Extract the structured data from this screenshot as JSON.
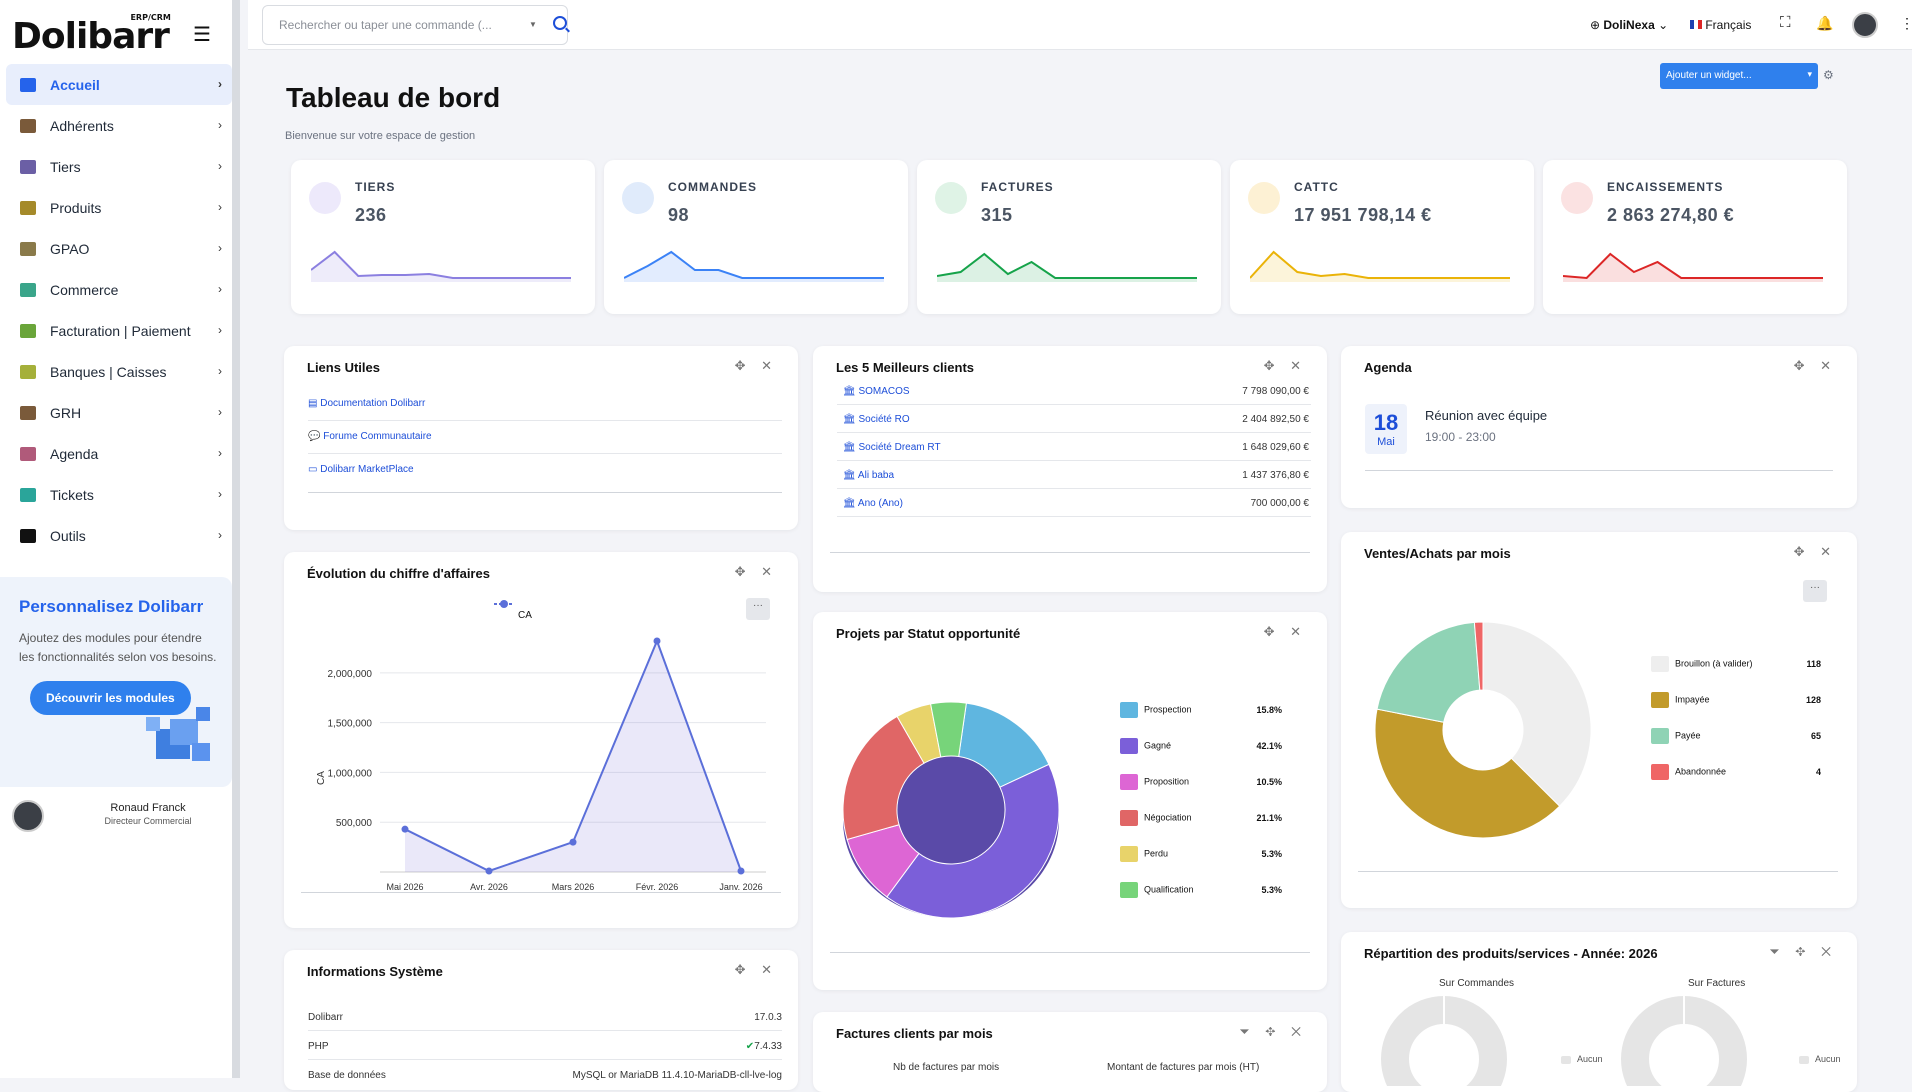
{
  "app": {
    "logo": "Dolibarr",
    "logo_tag": "ERP/CRM"
  },
  "sidebar": {
    "items": [
      {
        "label": "Accueil",
        "color": "#2563eb"
      },
      {
        "label": "Adhérents",
        "color": "#7a5a3a"
      },
      {
        "label": "Tiers",
        "color": "#6b5fa5"
      },
      {
        "label": "Produits",
        "color": "#a58a2a"
      },
      {
        "label": "GPAO",
        "color": "#8a7a4a"
      },
      {
        "label": "Commerce",
        "color": "#3aa58a"
      },
      {
        "label": "Facturation | Paiement",
        "color": "#6aa53a"
      },
      {
        "label": "Banques | Caisses",
        "color": "#a5b03a"
      },
      {
        "label": "GRH",
        "color": "#7a5a3a"
      },
      {
        "label": "Agenda",
        "color": "#b05a7a"
      },
      {
        "label": "Tickets",
        "color": "#2aa59a"
      },
      {
        "label": "Outils",
        "color": "#111111"
      }
    ],
    "promo": {
      "title": "Personnalisez Dolibarr",
      "text": "Ajoutez des modules pour étendre les fonctionnalités selon vos besoins.",
      "button": "Découvrir les modules"
    },
    "user": {
      "name": "Ronaud Franck",
      "role": "Directeur Commercial"
    }
  },
  "topbar": {
    "search_placeholder": "Rechercher ou taper une commande (...",
    "company": "DoliNexa",
    "language": "Français"
  },
  "page": {
    "title": "Tableau de bord",
    "subtitle": "Bienvenue sur votre espace de gestion",
    "add_widget": "Ajouter un widget..."
  },
  "kpis": [
    {
      "label": "TIERS",
      "value": "236",
      "color": "#8b7fe0",
      "bg": "#ede9fb",
      "spark": [
        10,
        28,
        4,
        5,
        5,
        6,
        2,
        2,
        2,
        2,
        2,
        2
      ]
    },
    {
      "label": "COMMANDES",
      "value": "98",
      "color": "#3b82f6",
      "bg": "#e0ebfb",
      "spark": [
        2,
        14,
        28,
        10,
        10,
        2,
        2,
        2,
        2,
        2,
        2,
        2
      ]
    },
    {
      "label": "FACTURES",
      "value": "315",
      "color": "#16a34a",
      "bg": "#dff3e6",
      "spark": [
        4,
        8,
        26,
        6,
        18,
        2,
        2,
        2,
        2,
        2,
        2,
        2
      ]
    },
    {
      "label": "CATTC",
      "value": "17 951 798,14 €",
      "color": "#eab308",
      "bg": "#fdf1d4",
      "spark": [
        2,
        28,
        8,
        4,
        6,
        2,
        2,
        2,
        2,
        2,
        2,
        2
      ]
    },
    {
      "label": "ENCAISSEMENTS",
      "value": "2 863 274,80 €",
      "color": "#dc2626",
      "bg": "#fbe2e2",
      "spark": [
        4,
        2,
        26,
        8,
        18,
        2,
        2,
        2,
        2,
        2,
        2,
        2
      ]
    }
  ],
  "liens": {
    "title": "Liens Utiles",
    "items": [
      "Documentation Dolibarr",
      "Forume Communautaire",
      "Dolibarr MarketPlace"
    ]
  },
  "clients": {
    "title": "Les 5 Meilleurs clients",
    "rows": [
      {
        "name": "SOMACOS",
        "amount": "7 798 090,00 €"
      },
      {
        "name": "Société RO",
        "amount": "2 404 892,50 €"
      },
      {
        "name": "Société Dream RT",
        "amount": "1 648 029,60 €"
      },
      {
        "name": "Ali baba",
        "amount": "1 437 376,80 €"
      },
      {
        "name": "Ano (Ano)",
        "amount": "700 000,00 €"
      }
    ]
  },
  "agenda": {
    "title": "Agenda",
    "day": "18",
    "month": "Mai",
    "event": "Réunion avec équipe",
    "time": "19:00 - 23:00"
  },
  "ca_chart": {
    "title": "Évolution du chiffre d'affaires"
  },
  "projets": {
    "title": "Projets par Statut opportunité"
  },
  "ventes": {
    "title": "Ventes/Achats par mois"
  },
  "sys": {
    "title": "Informations Système",
    "rows": [
      {
        "label": "Dolibarr",
        "value": "17.0.3"
      },
      {
        "label": "PHP",
        "value": "7.4.33"
      },
      {
        "label": "Base de données",
        "value": "MySQL or MariaDB 11.4.10-MariaDB-cll-lve-log"
      }
    ]
  },
  "factures": {
    "title": "Factures clients par mois",
    "col1": "Nb de factures par mois",
    "col2": "Montant de factures par mois (HT)"
  },
  "repartition": {
    "title": "Répartition des produits/services - Année: 2026",
    "left": "Sur Commandes",
    "right": "Sur Factures",
    "legend": "Aucun"
  },
  "chart_data": [
    {
      "type": "line",
      "title": "",
      "series": [
        {
          "name": "CA",
          "values": [
            430000,
            10000,
            300000,
            2320000,
            10000
          ]
        }
      ],
      "categories": [
        "Mai 2026",
        "Avr. 2026",
        "Mars 2026",
        "Févr. 2026",
        "Janv. 2026"
      ],
      "ylabel": "CA",
      "yticks": [
        "2,000,000",
        "1,500,000",
        "1,000,000",
        "500,000"
      ],
      "ylim": [
        0,
        2350000
      ],
      "grid": true,
      "legend": "top",
      "color": "#5b6fd9"
    },
    {
      "type": "pie",
      "title": "",
      "labels": [
        "Prospection",
        "Gagné",
        "Proposition",
        "Négociation",
        "Perdu",
        "Qualification"
      ],
      "values": [
        15.8,
        42.1,
        10.5,
        21.1,
        5.3,
        5.3
      ],
      "display": [
        "15.8%",
        "42.1%",
        "10.5%",
        "21.1%",
        "5.3%",
        "5.3%"
      ],
      "colors": [
        "#5fb6e0",
        "#7b5fd9",
        "#dd66d4",
        "#e06666",
        "#e8d36a",
        "#77d47a"
      ],
      "legend": "right"
    },
    {
      "type": "pie",
      "title": "",
      "labels": [
        "Brouillon (à valider)",
        "Impayée",
        "Payée",
        "Abandonnée"
      ],
      "values": [
        118,
        128,
        65,
        4
      ],
      "colors": [
        "#eeeeee",
        "#c29b2b",
        "#8fd3b5",
        "#ef6666"
      ],
      "legend": "right"
    }
  ]
}
